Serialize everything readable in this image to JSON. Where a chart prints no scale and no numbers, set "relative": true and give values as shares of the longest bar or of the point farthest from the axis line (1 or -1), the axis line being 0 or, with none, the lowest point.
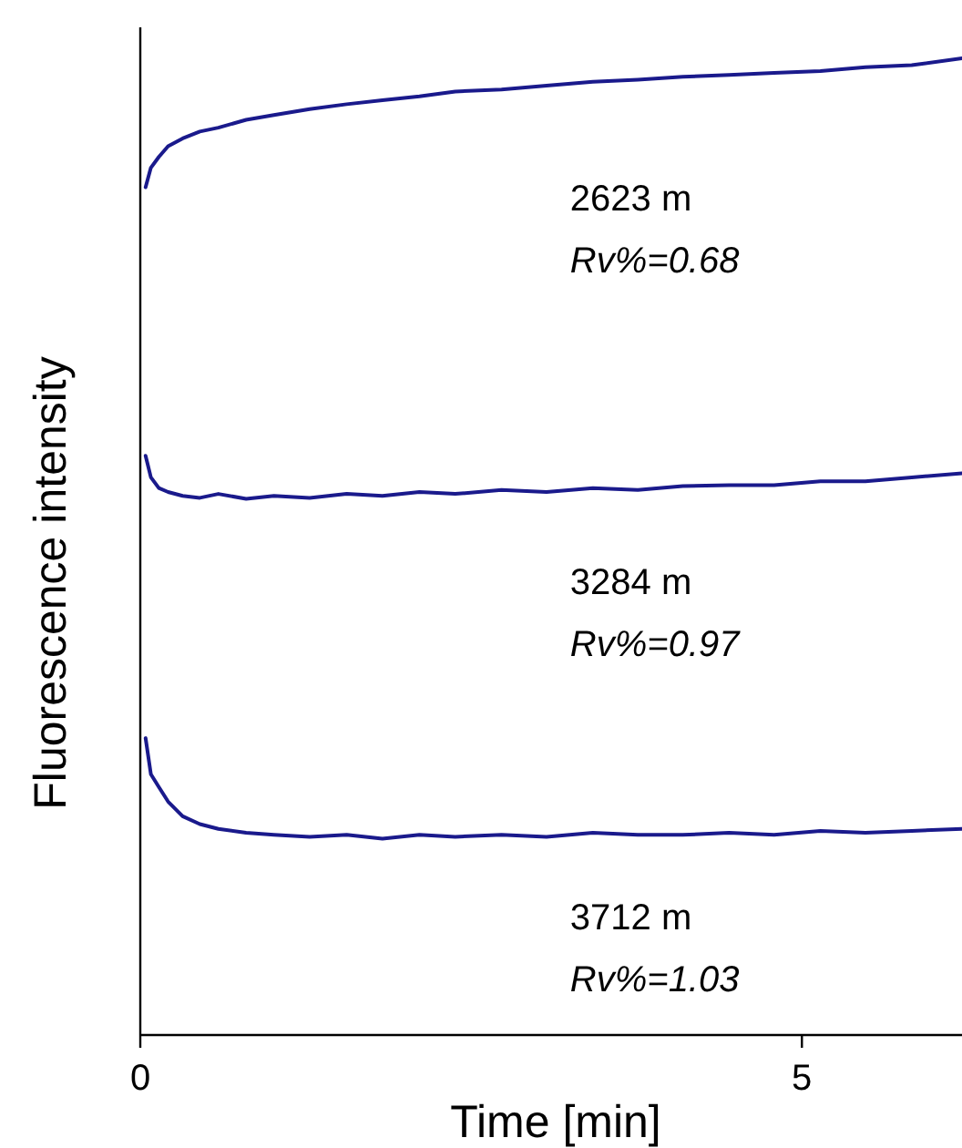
{
  "chart_data": {
    "type": "line",
    "relative": true,
    "xlabel": "Time [min]",
    "ylabel": "Fluorescence intensity",
    "xlim": [
      0,
      6.21
    ],
    "xticks": [
      0,
      5
    ],
    "grid": false,
    "line_style": "solid",
    "x": [
      0.04,
      0.08,
      0.14,
      0.21,
      0.32,
      0.45,
      0.59,
      0.8,
      1.01,
      1.28,
      1.56,
      1.83,
      2.11,
      2.38,
      2.73,
      3.07,
      3.42,
      3.76,
      4.1,
      4.45,
      4.79,
      5.14,
      5.48,
      5.83,
      6.21
    ],
    "series": [
      {
        "name": "2623 m",
        "color": "#1a1a8c",
        "values": [
          0.868,
          0.888,
          0.899,
          0.91,
          0.918,
          0.925,
          0.929,
          0.937,
          0.942,
          0.948,
          0.953,
          0.957,
          0.961,
          0.966,
          0.968,
          0.972,
          0.976,
          0.978,
          0.981,
          0.983,
          0.985,
          0.987,
          0.991,
          0.993,
          1.0
        ]
      },
      {
        "name": "3284 m",
        "color": "#1a1a8c",
        "values": [
          0.593,
          0.571,
          0.56,
          0.556,
          0.552,
          0.55,
          0.554,
          0.549,
          0.552,
          0.55,
          0.554,
          0.552,
          0.556,
          0.554,
          0.558,
          0.556,
          0.56,
          0.558,
          0.562,
          0.563,
          0.563,
          0.567,
          0.567,
          0.571,
          0.575
        ]
      },
      {
        "name": "3712 m",
        "color": "#1a1a8c",
        "values": [
          0.304,
          0.267,
          0.254,
          0.239,
          0.224,
          0.216,
          0.211,
          0.207,
          0.205,
          0.203,
          0.205,
          0.201,
          0.205,
          0.203,
          0.205,
          0.203,
          0.207,
          0.205,
          0.205,
          0.207,
          0.205,
          0.209,
          0.207,
          0.209,
          0.211
        ]
      }
    ],
    "annotations": [
      "Rv%=0.68",
      "Rv%=0.97",
      "Rv%=1.03"
    ]
  }
}
